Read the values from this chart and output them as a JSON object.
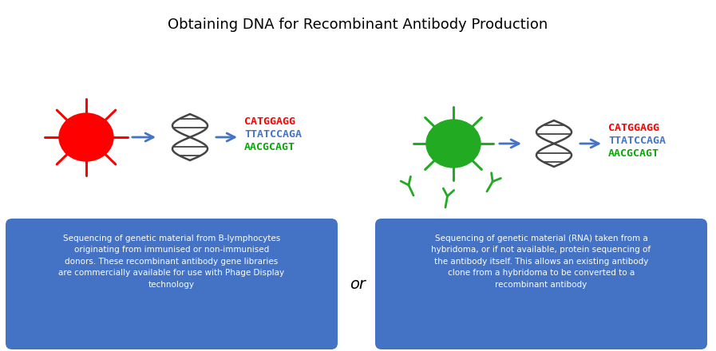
{
  "title": "Obtaining DNA for Recombinant Antibody Production",
  "title_fontsize": 13,
  "background_color": "#ffffff",
  "box_color": "#4472C4",
  "box_text_color": "#ffffff",
  "arrow_color": "#4472C4",
  "left_cell_color": "#FF0000",
  "right_cell_color": "#22AA22",
  "dna_color": "#444444",
  "seq_lines": [
    "CATGGAGG",
    "TTATCCAGA",
    "AACGCAGT"
  ],
  "seq_colors": [
    "#FF0000",
    "#4472C4",
    "#00AA00"
  ],
  "left_box_text": "Sequencing of genetic material from B-lymphocytes\noriginating from immunised or non-immunised\ndonors. These recombinant antibody gene libraries\nare commercially available for use with Phage Display\ntechnology",
  "right_box_text": "Sequencing of genetic material (RNA) taken from a\nhybridoma, or if not available, protein sequencing of\nthe antibody itself. This allows an existing antibody\nclone from a hybridoma to be converted to a\nrecombinant antibody",
  "or_text": "or"
}
